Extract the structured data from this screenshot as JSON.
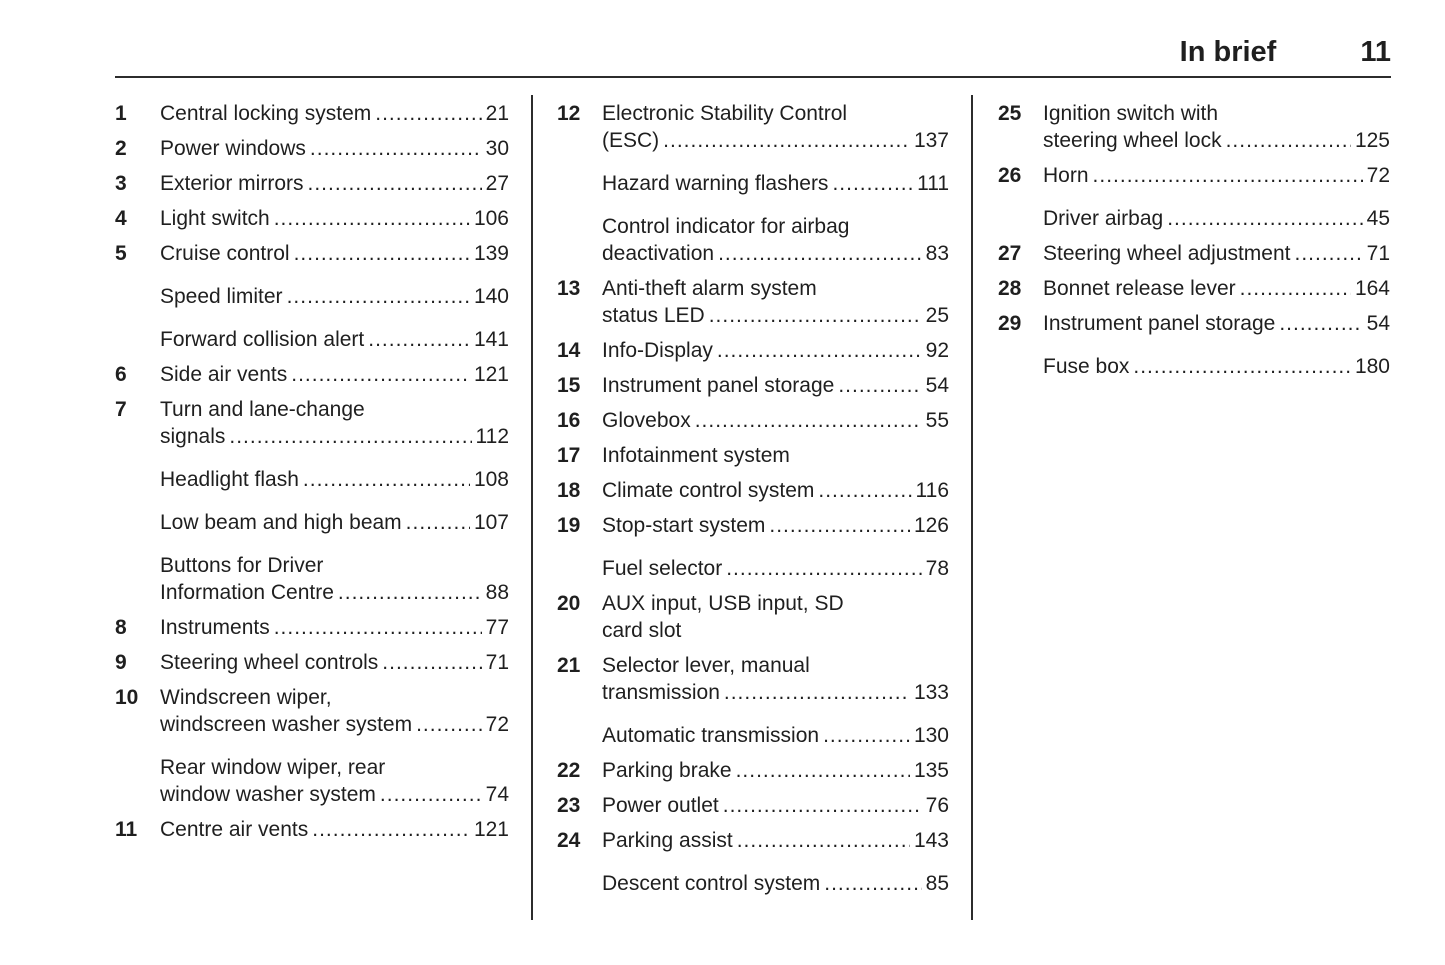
{
  "header": {
    "title": "In brief",
    "page_number": "11"
  },
  "columns": [
    {
      "entries": [
        {
          "number": "1",
          "lines": [
            "Central locking system"
          ],
          "page": "21"
        },
        {
          "number": "2",
          "lines": [
            "Power windows"
          ],
          "page": "30"
        },
        {
          "number": "3",
          "lines": [
            "Exterior mirrors"
          ],
          "page": "27"
        },
        {
          "number": "4",
          "lines": [
            "Light switch"
          ],
          "page": "106"
        },
        {
          "number": "5",
          "lines": [
            "Cruise control"
          ],
          "page": "139"
        },
        {
          "number": null,
          "lines": [
            "Speed limiter"
          ],
          "page": "140"
        },
        {
          "number": null,
          "lines": [
            "Forward collision alert"
          ],
          "page": "141"
        },
        {
          "number": "6",
          "lines": [
            "Side air vents"
          ],
          "page": "121"
        },
        {
          "number": "7",
          "lines": [
            "Turn and lane-change",
            "signals"
          ],
          "page": "112"
        },
        {
          "number": null,
          "lines": [
            "Headlight flash"
          ],
          "page": "108"
        },
        {
          "number": null,
          "lines": [
            "Low beam and high beam"
          ],
          "page": "107"
        },
        {
          "number": null,
          "lines": [
            "Buttons for Driver",
            "Information Centre"
          ],
          "page": "88"
        },
        {
          "number": "8",
          "lines": [
            "Instruments"
          ],
          "page": "77"
        },
        {
          "number": "9",
          "lines": [
            "Steering wheel controls"
          ],
          "page": "71"
        },
        {
          "number": "10",
          "lines": [
            "Windscreen wiper,",
            "windscreen washer system"
          ],
          "page": "72"
        },
        {
          "number": null,
          "lines": [
            "Rear window wiper, rear",
            "window washer system"
          ],
          "page": "74"
        },
        {
          "number": "11",
          "lines": [
            "Centre air vents"
          ],
          "page": "121"
        }
      ]
    },
    {
      "entries": [
        {
          "number": "12",
          "lines": [
            "Electronic Stability Control",
            "(ESC)"
          ],
          "page": "137"
        },
        {
          "number": null,
          "lines": [
            "Hazard warning flashers"
          ],
          "page": "111"
        },
        {
          "number": null,
          "lines": [
            "Control indicator for airbag",
            "deactivation"
          ],
          "page": "83"
        },
        {
          "number": "13",
          "lines": [
            "Anti-theft alarm system",
            "status LED"
          ],
          "page": "25"
        },
        {
          "number": "14",
          "lines": [
            "Info-Display"
          ],
          "page": "92"
        },
        {
          "number": "15",
          "lines": [
            "Instrument panel storage"
          ],
          "page": "54"
        },
        {
          "number": "16",
          "lines": [
            "Glovebox"
          ],
          "page": "55"
        },
        {
          "number": "17",
          "lines": [
            "Infotainment system"
          ],
          "page": null
        },
        {
          "number": "18",
          "lines": [
            "Climate control system"
          ],
          "page": "116"
        },
        {
          "number": "19",
          "lines": [
            "Stop-start system"
          ],
          "page": "126"
        },
        {
          "number": null,
          "lines": [
            "Fuel selector"
          ],
          "page": "78"
        },
        {
          "number": "20",
          "lines": [
            "AUX input, USB input, SD",
            "card slot"
          ],
          "page": null
        },
        {
          "number": "21",
          "lines": [
            "Selector lever, manual",
            "transmission"
          ],
          "page": "133"
        },
        {
          "number": null,
          "lines": [
            "Automatic transmission"
          ],
          "page": "130"
        },
        {
          "number": "22",
          "lines": [
            "Parking brake"
          ],
          "page": "135"
        },
        {
          "number": "23",
          "lines": [
            "Power outlet"
          ],
          "page": "76"
        },
        {
          "number": "24",
          "lines": [
            "Parking assist"
          ],
          "page": "143"
        },
        {
          "number": null,
          "lines": [
            "Descent control system"
          ],
          "page": "85"
        }
      ]
    },
    {
      "entries": [
        {
          "number": "25",
          "lines": [
            "Ignition switch with",
            "steering wheel lock"
          ],
          "page": "125"
        },
        {
          "number": "26",
          "lines": [
            "Horn"
          ],
          "page": "72"
        },
        {
          "number": null,
          "lines": [
            "Driver airbag"
          ],
          "page": "45"
        },
        {
          "number": "27",
          "lines": [
            "Steering wheel adjustment"
          ],
          "page": "71"
        },
        {
          "number": "28",
          "lines": [
            "Bonnet release lever"
          ],
          "page": "164"
        },
        {
          "number": "29",
          "lines": [
            "Instrument panel storage"
          ],
          "page": "54"
        },
        {
          "number": null,
          "lines": [
            "Fuse box"
          ],
          "page": "180"
        }
      ]
    }
  ]
}
